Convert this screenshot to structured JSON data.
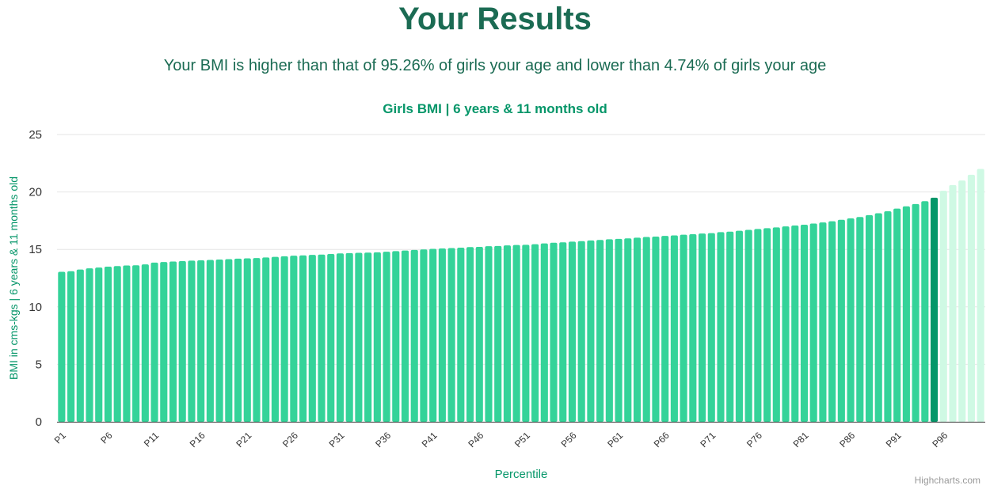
{
  "page": {
    "title": "Your Results",
    "summary": "Your BMI is higher than that of 95.26% of girls your age and lower than 4.74% of girls your age",
    "credits": "Highcharts.com"
  },
  "colors": {
    "bar": "#34d399",
    "highlight": "#059669",
    "above": "#cff9e4",
    "title": "#1b6b53",
    "accent": "#059669",
    "grid": "#e6e6e6",
    "axis_line": "#333333",
    "tick_text": "#333333"
  },
  "chart_data": {
    "type": "bar",
    "title": "Girls BMI | 6 years & 11 months old",
    "xlabel": "Percentile",
    "ylabel": "BMI in cms-kgs | 6 years & 11 months old",
    "ylim": [
      0,
      25
    ],
    "yticks": [
      0,
      5,
      10,
      15,
      20,
      25
    ],
    "grid": true,
    "legend": "none",
    "highlight_index": 94,
    "highlight_category": "P95",
    "xtick_labels": [
      "P1",
      "P6",
      "P11",
      "P16",
      "P21",
      "P26",
      "P31",
      "P36",
      "P41",
      "P46",
      "P51",
      "P56",
      "P61",
      "P66",
      "P71",
      "P76",
      "P81",
      "P86",
      "P91",
      "P96"
    ],
    "categories": [
      "P1",
      "P2",
      "P3",
      "P4",
      "P5",
      "P6",
      "P7",
      "P8",
      "P9",
      "P10",
      "P11",
      "P12",
      "P13",
      "P14",
      "P15",
      "P16",
      "P17",
      "P18",
      "P19",
      "P20",
      "P21",
      "P22",
      "P23",
      "P24",
      "P25",
      "P26",
      "P27",
      "P28",
      "P29",
      "P30",
      "P31",
      "P32",
      "P33",
      "P34",
      "P35",
      "P36",
      "P37",
      "P38",
      "P39",
      "P40",
      "P41",
      "P42",
      "P43",
      "P44",
      "P45",
      "P46",
      "P47",
      "P48",
      "P49",
      "P50",
      "P51",
      "P52",
      "P53",
      "P54",
      "P55",
      "P56",
      "P57",
      "P58",
      "P59",
      "P60",
      "P61",
      "P62",
      "P63",
      "P64",
      "P65",
      "P66",
      "P67",
      "P68",
      "P69",
      "P70",
      "P71",
      "P72",
      "P73",
      "P74",
      "P75",
      "P76",
      "P77",
      "P78",
      "P79",
      "P80",
      "P81",
      "P82",
      "P83",
      "P84",
      "P85",
      "P86",
      "P87",
      "P88",
      "P89",
      "P90",
      "P91",
      "P92",
      "P93",
      "P94",
      "P95",
      "P96",
      "P97",
      "P98",
      "P99",
      "P100"
    ],
    "values": [
      13.05,
      13.1,
      13.25,
      13.35,
      13.42,
      13.5,
      13.55,
      13.6,
      13.62,
      13.7,
      13.85,
      13.9,
      13.95,
      13.98,
      14.02,
      14.05,
      14.08,
      14.12,
      14.15,
      14.2,
      14.22,
      14.25,
      14.3,
      14.35,
      14.4,
      14.45,
      14.48,
      14.52,
      14.55,
      14.6,
      14.65,
      14.68,
      14.7,
      14.72,
      14.75,
      14.8,
      14.85,
      14.9,
      14.95,
      15.0,
      15.05,
      15.08,
      15.12,
      15.15,
      15.2,
      15.22,
      15.28,
      15.3,
      15.35,
      15.38,
      15.4,
      15.45,
      15.52,
      15.58,
      15.62,
      15.68,
      15.72,
      15.78,
      15.82,
      15.88,
      15.92,
      15.96,
      16.02,
      16.08,
      16.12,
      16.18,
      16.22,
      16.28,
      16.32,
      16.38,
      16.42,
      16.5,
      16.55,
      16.62,
      16.7,
      16.78,
      16.85,
      16.92,
      17.0,
      17.08,
      17.15,
      17.25,
      17.35,
      17.45,
      17.58,
      17.7,
      17.82,
      17.98,
      18.15,
      18.32,
      18.55,
      18.75,
      18.95,
      19.2,
      19.5,
      20.1,
      20.6,
      21.0,
      21.5,
      22.0
    ]
  }
}
